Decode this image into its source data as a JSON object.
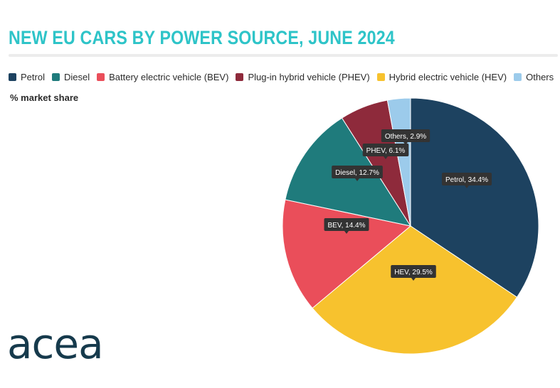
{
  "title": "NEW EU CARS BY POWER SOURCE, JUNE 2024",
  "subtitle": "% market share",
  "logo": "acea",
  "legend": [
    {
      "label": "Petrol",
      "color": "#1d4260"
    },
    {
      "label": "Diesel",
      "color": "#1f7b7c"
    },
    {
      "label": "Battery electric vehicle (BEV)",
      "color": "#ea4e5a"
    },
    {
      "label": "Plug-in hybrid vehicle (PHEV)",
      "color": "#8e2a3b"
    },
    {
      "label": "Hybrid electric vehicle (HEV)",
      "color": "#f7c22e"
    },
    {
      "label": "Others",
      "color": "#9ccbeb"
    }
  ],
  "chart_data": {
    "type": "pie",
    "title": "NEW EU CARS BY POWER SOURCE, JUNE 2024",
    "subtitle": "% market share",
    "legend_position": "top",
    "slices": [
      {
        "name": "Petrol",
        "value": 34.4,
        "label": "Petrol, 34.4%",
        "color": "#1d4260"
      },
      {
        "name": "HEV",
        "value": 29.5,
        "label": "HEV, 29.5%",
        "color": "#f7c22e"
      },
      {
        "name": "BEV",
        "value": 14.4,
        "label": "BEV, 14.4%",
        "color": "#ea4e5a"
      },
      {
        "name": "Diesel",
        "value": 12.7,
        "label": "Diesel, 12.7%",
        "color": "#1f7b7c"
      },
      {
        "name": "PHEV",
        "value": 6.1,
        "label": "PHEV, 6.1%",
        "color": "#8e2a3b"
      },
      {
        "name": "Others",
        "value": 2.9,
        "label": "Others, 2.9%",
        "color": "#9ccbeb"
      }
    ]
  }
}
